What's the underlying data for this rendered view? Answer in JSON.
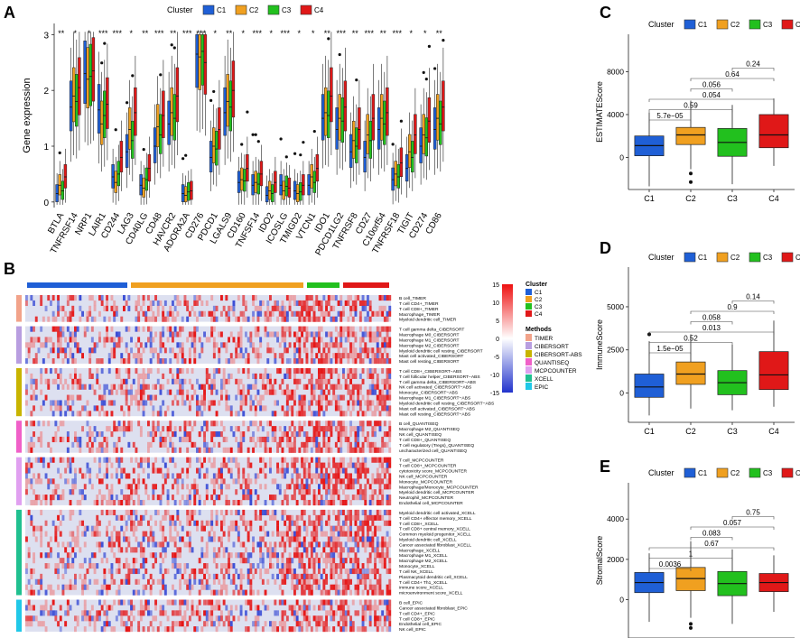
{
  "colors": {
    "C1": "#1f5fd6",
    "C2": "#f0a020",
    "C3": "#22c01e",
    "C4": "#e01818",
    "TIMER": "#f2a38a",
    "CIBERSORT": "#b89ee0",
    "CIBERSORT-ABS": "#c8b400",
    "QUANTISEQ": "#f060c8",
    "MCPCOUNTER": "#e0a0f0",
    "XCELL": "#20c090",
    "EPIC": "#20c8e8",
    "heat_low": "#2233cc",
    "heat_mid": "#ffffff",
    "heat_high": "#ee1111"
  },
  "panel_labels": {
    "A": "A",
    "B": "B",
    "C": "C",
    "D": "D",
    "E": "E"
  },
  "chart_data": [
    {
      "id": "A",
      "type": "boxplot",
      "legend_title": "Cluster",
      "legend": [
        "C1",
        "C2",
        "C3",
        "C4"
      ],
      "ylabel": "Gene expression",
      "ylim": [
        -0.1,
        3.2
      ],
      "yticks": [
        0,
        1,
        2,
        3
      ],
      "genes": [
        "BTLA",
        "TNFRSF14",
        "NRP1",
        "LAIR1",
        "CD244",
        "LAG3",
        "CD40LG",
        "CD48",
        "HAVCR2",
        "ADORA2A",
        "CD276",
        "PDCD1",
        "LGALS9",
        "CD160",
        "TNFSF14",
        "IDO2",
        "ICOSLG",
        "TMIGD2",
        "VTCN1",
        "IDO1",
        "PDCD1LG2",
        "TNFRSF8",
        "CD27",
        "C10orf54",
        "TNFRSF18",
        "TIGIT",
        "CD274",
        "CD86"
      ],
      "signif": [
        "**",
        "*",
        "*",
        "***",
        "***",
        "*",
        "**",
        "***",
        "**",
        "***",
        "***",
        "*",
        "**",
        "*",
        "***",
        "*",
        "***",
        "*",
        "*",
        "**",
        "***",
        "**",
        "***",
        "**",
        "***",
        "*",
        "*",
        "**"
      ],
      "medians": [
        [
          0.15,
          0.3,
          0.2,
          0.45
        ],
        [
          1.7,
          1.9,
          1.8,
          2.05
        ],
        [
          2.3,
          2.2,
          2.25,
          2.35
        ],
        [
          1.65,
          1.4,
          1.55,
          1.75
        ],
        [
          0.45,
          0.35,
          0.5,
          0.8
        ],
        [
          0.9,
          1.3,
          1.1,
          1.6
        ],
        [
          0.3,
          0.25,
          0.4,
          0.6
        ],
        [
          1.0,
          1.35,
          1.2,
          1.55
        ],
        [
          1.4,
          1.6,
          1.5,
          1.9
        ],
        [
          0.15,
          0.12,
          0.18,
          0.2
        ],
        [
          2.65,
          2.6,
          2.7,
          2.5
        ],
        [
          0.8,
          1.0,
          0.95,
          1.3
        ],
        [
          1.6,
          1.8,
          1.7,
          2.0
        ],
        [
          0.35,
          0.4,
          0.38,
          0.6
        ],
        [
          0.3,
          0.35,
          0.32,
          0.5
        ],
        [
          0.12,
          0.2,
          0.15,
          0.35
        ],
        [
          0.3,
          0.2,
          0.28,
          0.25
        ],
        [
          0.2,
          0.15,
          0.18,
          0.3
        ],
        [
          0.3,
          0.45,
          0.35,
          0.6
        ],
        [
          1.5,
          1.6,
          1.55,
          1.9
        ],
        [
          1.3,
          1.5,
          1.45,
          1.7
        ],
        [
          0.9,
          1.1,
          1.0,
          1.3
        ],
        [
          0.8,
          1.2,
          1.1,
          1.5
        ],
        [
          1.3,
          1.5,
          1.4,
          1.6
        ],
        [
          0.4,
          0.5,
          0.45,
          0.7
        ],
        [
          0.6,
          0.9,
          0.8,
          1.2
        ],
        [
          1.0,
          1.2,
          1.15,
          1.45
        ],
        [
          1.3,
          1.5,
          1.4,
          1.7
        ]
      ]
    },
    {
      "id": "B",
      "type": "heatmap",
      "legend_cluster_title": "Cluster",
      "legend_methods_title": "Methods",
      "colorbar_ticks": [
        15,
        10,
        5,
        0,
        -5,
        -10,
        -15
      ],
      "cluster_fractions": [
        0.23,
        0.39,
        0.08,
        0.11
      ],
      "methods": [
        "TIMER",
        "CIBERSORT",
        "CIBERSORT-ABS",
        "QUANTISEQ",
        "MCPCOUNTER",
        "XCELL",
        "EPIC"
      ],
      "groups": [
        {
          "method": "TIMER",
          "rows": [
            "B cell_TIMER",
            "T cell CD4+_TIMER",
            "T cell CD8+_TIMER",
            "Macrophage_TIMER",
            "Myeloid dendritic cell_TIMER"
          ]
        },
        {
          "method": "CIBERSORT",
          "rows": [
            "T cell gamma delta_CIBERSORT",
            "Macrophage M0_CIBERSORT",
            "Macrophage M1_CIBERSORT",
            "Macrophage M2_CIBERSORT",
            "Myeloid dendritic cell resting_CIBERSORT",
            "Mast cell activated_CIBERSORT",
            "Mast cell resting_CIBERSORT"
          ]
        },
        {
          "method": "CIBERSORT-ABS",
          "rows": [
            "T cell CD8+_CIBERSORT−ABS",
            "T cell follicular helper_CIBERSORT−ABS",
            "T cell gamma delta_CIBERSORT−ABS",
            "NK cell activated_CIBERSORT−ABS",
            "Monocyte_CIBERSORT−ABS",
            "Macrophage M1_CIBERSORT−ABS",
            "Myeloid dendritic cell resting_CIBERSORT−ABS",
            "Mast cell activated_CIBERSORT−ABS",
            "Mast cell resting_CIBERSORT−ABS"
          ]
        },
        {
          "method": "QUANTISEQ",
          "rows": [
            "B cell_QUANTISEQ",
            "Macrophage M2_QUANTISEQ",
            "NK cell_QUANTISEQ",
            "T cell CD8+_QUANTISEQ",
            "T cell regulatory (Tregs)_QUANTISEQ",
            "uncharacterized cell_QUANTISEQ"
          ]
        },
        {
          "method": "MCPCOUNTER",
          "rows": [
            "T cell_MCPCOUNTER",
            "T cell CD8+_MCPCOUNTER",
            "cytotoxicity score_MCPCOUNTER",
            "NK cell_MCPCOUNTER",
            "Monocyte_MCPCOUNTER",
            "Macrophage/Monocyte_MCPCOUNTER",
            "Myeloid dendritic cell_MCPCOUNTER",
            "Neutrophil_MCPCOUNTER",
            "Endothelial cell_MCPCOUNTER"
          ]
        },
        {
          "method": "XCELL",
          "rows": [
            "Myeloid dendritic cell activated_XCELL",
            "T cell CD4+ effector memory_XCELL",
            "T cell CD8+_XCELL",
            "T cell CD8+ central memory_XCELL",
            "Common myeloid progenitor_XCELL",
            "Myeloid dendritic cell_XCELL",
            "Cancer associated fibroblast_XCELL",
            "Macrophage_XCELL",
            "Macrophage M1_XCELL",
            "Macrophage M2_XCELL",
            "Monocyte_XCELL",
            "T cell NK_XCELL",
            "Plasmacytoid dendritic cell_XCELL",
            "T cell CD4+ Th1_XCELL",
            "immune score_XCELL",
            "microenvironment score_XCELL"
          ]
        },
        {
          "method": "EPIC",
          "rows": [
            "B cell_EPIC",
            "Cancer associated fibroblast_EPIC",
            "T cell CD4+_EPIC",
            "T cell CD8+_EPIC",
            "Endothelial cell_EPIC",
            "NK cell_EPIC"
          ]
        }
      ]
    },
    {
      "id": "C",
      "type": "boxplot",
      "legend_title": "Cluster",
      "categories": [
        "C1",
        "C2",
        "C3",
        "C4"
      ],
      "ylabel": "ESTIMATEScore",
      "ylim": [
        -3000,
        11500
      ],
      "yticks": [
        0,
        4000,
        8000
      ],
      "boxes": [
        {
          "min": -2700,
          "q1": 150,
          "median": 1100,
          "q3": 2000,
          "max": 4200,
          "outliers": []
        },
        {
          "min": -1100,
          "q1": 1200,
          "median": 2100,
          "q3": 2800,
          "max": 5300,
          "outliers": [
            -1500,
            -2300
          ]
        },
        {
          "min": -2500,
          "q1": 100,
          "median": 1400,
          "q3": 2700,
          "max": 4900,
          "outliers": []
        },
        {
          "min": -800,
          "q1": 900,
          "median": 2100,
          "q3": 4000,
          "max": 5500,
          "outliers": []
        }
      ],
      "comparisons": [
        {
          "pair": [
            "C1",
            "C2"
          ],
          "p": "5.7e−05"
        },
        {
          "pair": [
            "C1",
            "C3"
          ],
          "p": "0.59"
        },
        {
          "pair": [
            "C1",
            "C4"
          ],
          "p": "0.054"
        },
        {
          "pair": [
            "C2",
            "C3"
          ],
          "p": "0.056"
        },
        {
          "pair": [
            "C2",
            "C4"
          ],
          "p": "0.64"
        },
        {
          "pair": [
            "C3",
            "C4"
          ],
          "p": "0.24"
        }
      ]
    },
    {
      "id": "D",
      "type": "boxplot",
      "legend_title": "Cluster",
      "categories": [
        "C1",
        "C2",
        "C3",
        "C4"
      ],
      "ylabel": "ImmuneScore",
      "ylim": [
        -1700,
        7300
      ],
      "yticks": [
        0,
        2500,
        5000
      ],
      "boxes": [
        {
          "min": -1300,
          "q1": -250,
          "median": 350,
          "q3": 1100,
          "max": 3000,
          "outliers": [
            3400
          ]
        },
        {
          "min": -900,
          "q1": 500,
          "median": 1100,
          "q3": 1800,
          "max": 3400,
          "outliers": []
        },
        {
          "min": -1000,
          "q1": -100,
          "median": 600,
          "q3": 1300,
          "max": 2800,
          "outliers": []
        },
        {
          "min": -800,
          "q1": 200,
          "median": 1050,
          "q3": 2400,
          "max": 4200,
          "outliers": []
        }
      ],
      "comparisons": [
        {
          "pair": [
            "C1",
            "C2"
          ],
          "p": "1.5e−05"
        },
        {
          "pair": [
            "C1",
            "C3"
          ],
          "p": "0.52"
        },
        {
          "pair": [
            "C1",
            "C4"
          ],
          "p": "0.013"
        },
        {
          "pair": [
            "C2",
            "C3"
          ],
          "p": "0.058"
        },
        {
          "pair": [
            "C2",
            "C4"
          ],
          "p": "0.9"
        },
        {
          "pair": [
            "C3",
            "C4"
          ],
          "p": "0.14"
        }
      ]
    },
    {
      "id": "E",
      "type": "boxplot",
      "legend_title": "Cluster",
      "categories": [
        "C1",
        "C2",
        "C3",
        "C4"
      ],
      "ylabel": "StromalScore",
      "ylim": [
        -1900,
        5800
      ],
      "yticks": [
        0,
        2000,
        4000
      ],
      "boxes": [
        {
          "min": -1100,
          "q1": 350,
          "median": 850,
          "q3": 1350,
          "max": 2300,
          "outliers": []
        },
        {
          "min": -900,
          "q1": 450,
          "median": 1050,
          "q3": 1600,
          "max": 2900,
          "outliers": [
            -1200,
            -1400
          ]
        },
        {
          "min": -1200,
          "q1": 200,
          "median": 800,
          "q3": 1400,
          "max": 2500,
          "outliers": []
        },
        {
          "min": -600,
          "q1": 400,
          "median": 850,
          "q3": 1300,
          "max": 2200,
          "outliers": []
        }
      ],
      "comparisons": [
        {
          "pair": [
            "C1",
            "C2"
          ],
          "p": "0.0036"
        },
        {
          "pair": [
            "C1",
            "C3"
          ],
          "p": "1"
        },
        {
          "pair": [
            "C1",
            "C4"
          ],
          "p": "0.67"
        },
        {
          "pair": [
            "C2",
            "C3"
          ],
          "p": "0.083"
        },
        {
          "pair": [
            "C2",
            "C4"
          ],
          "p": "0.057"
        },
        {
          "pair": [
            "C3",
            "C4"
          ],
          "p": "0.75"
        }
      ]
    }
  ]
}
